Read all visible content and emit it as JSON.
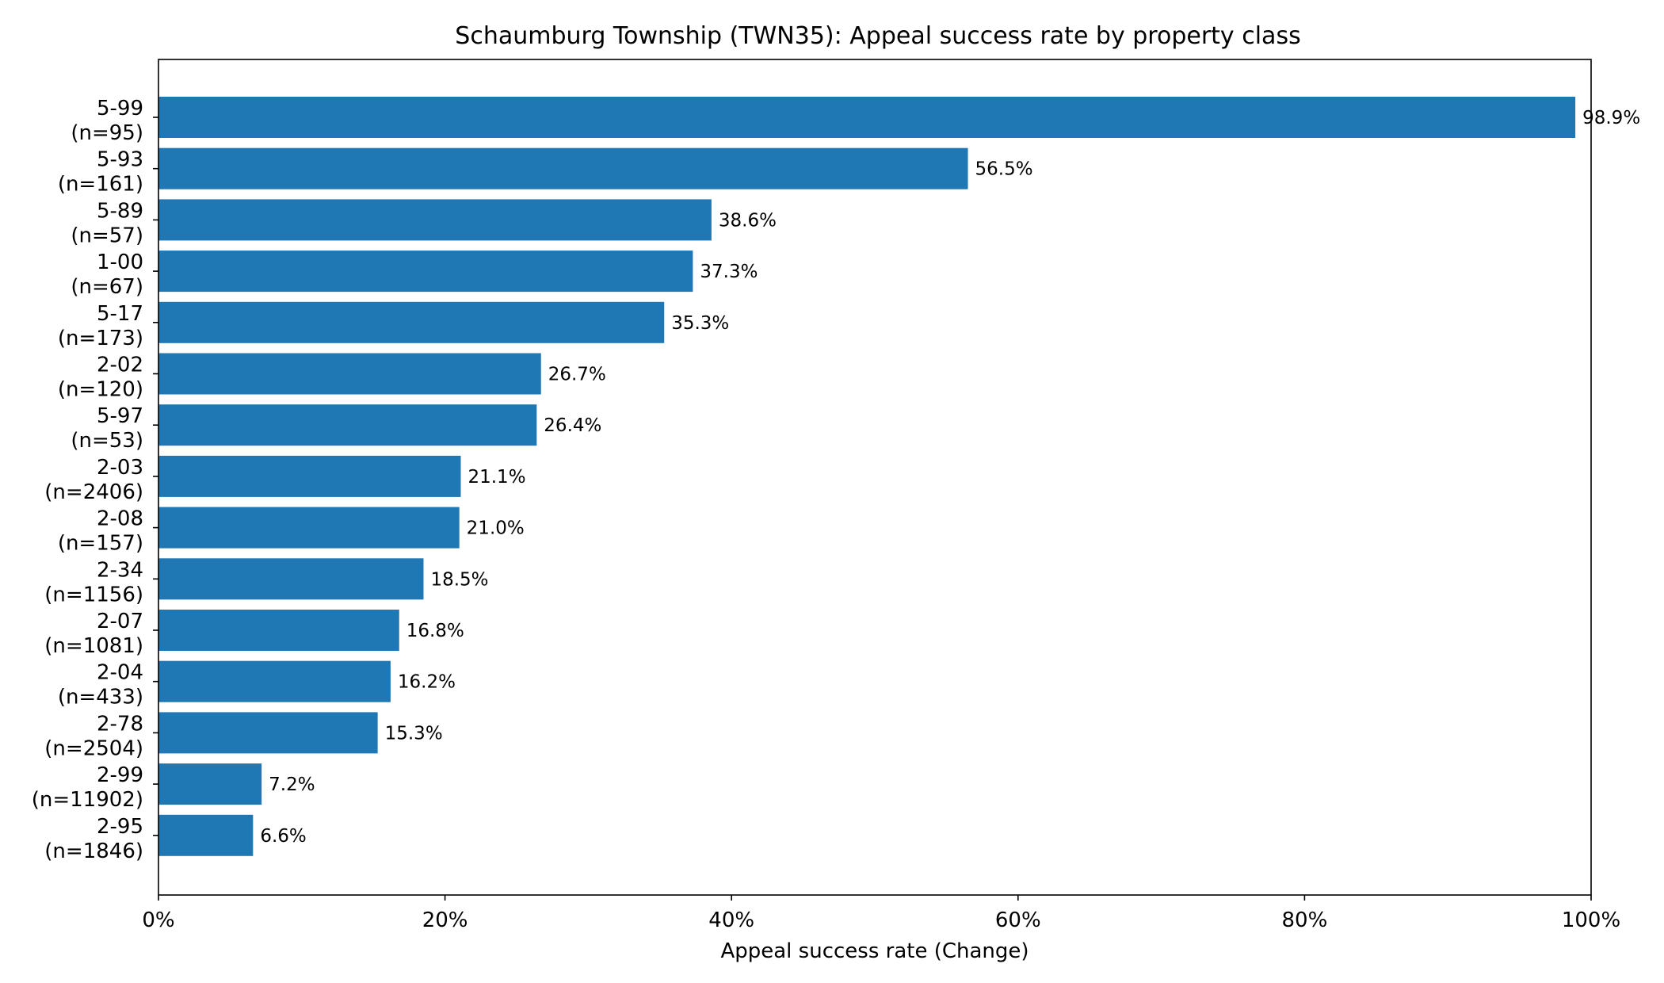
{
  "chart_data": {
    "type": "bar",
    "orientation": "horizontal",
    "title": "Schaumburg Township (TWN35): Appeal success rate by property class",
    "xlabel": "Appeal success rate (Change)",
    "ylabel": "",
    "xlim": [
      0,
      100
    ],
    "x_unit": "%",
    "x_ticks": [
      "0%",
      "20%",
      "40%",
      "60%",
      "80%",
      "100%"
    ],
    "grid": false,
    "bar_color": "#1f77b4",
    "categories": [
      {
        "class": "5-99",
        "n": "(n=95)",
        "value": 98.9,
        "label": "98.9%"
      },
      {
        "class": "5-93",
        "n": "(n=161)",
        "value": 56.5,
        "label": "56.5%"
      },
      {
        "class": "5-89",
        "n": "(n=57)",
        "value": 38.6,
        "label": "38.6%"
      },
      {
        "class": "1-00",
        "n": "(n=67)",
        "value": 37.3,
        "label": "37.3%"
      },
      {
        "class": "5-17",
        "n": "(n=173)",
        "value": 35.3,
        "label": "35.3%"
      },
      {
        "class": "2-02",
        "n": "(n=120)",
        "value": 26.7,
        "label": "26.7%"
      },
      {
        "class": "5-97",
        "n": "(n=53)",
        "value": 26.4,
        "label": "26.4%"
      },
      {
        "class": "2-03",
        "n": "(n=2406)",
        "value": 21.1,
        "label": "21.1%"
      },
      {
        "class": "2-08",
        "n": "(n=157)",
        "value": 21.0,
        "label": "21.0%"
      },
      {
        "class": "2-34",
        "n": "(n=1156)",
        "value": 18.5,
        "label": "18.5%"
      },
      {
        "class": "2-07",
        "n": "(n=1081)",
        "value": 16.8,
        "label": "16.8%"
      },
      {
        "class": "2-04",
        "n": "(n=433)",
        "value": 16.2,
        "label": "16.2%"
      },
      {
        "class": "2-78",
        "n": "(n=2504)",
        "value": 15.3,
        "label": "15.3%"
      },
      {
        "class": "2-99",
        "n": "(n=11902)",
        "value": 7.2,
        "label": "7.2%"
      },
      {
        "class": "2-95",
        "n": "(n=1846)",
        "value": 6.6,
        "label": "6.6%"
      }
    ]
  }
}
